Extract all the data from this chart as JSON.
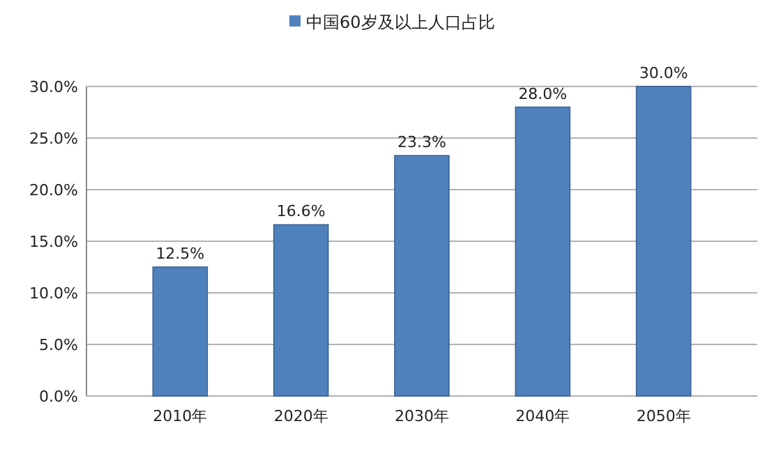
{
  "chart_data": {
    "type": "bar",
    "categories": [
      "2010年",
      "2020年",
      "2030年",
      "2040年",
      "2050年"
    ],
    "series": [
      {
        "name": "中国60岁及以上人口占比",
        "color": "#4f81bd",
        "values": [
          12.5,
          16.6,
          23.3,
          28.0,
          30.0
        ],
        "value_labels": [
          "12.5%",
          "16.6%",
          "23.3%",
          "28.0%",
          "30.0%"
        ]
      }
    ],
    "ylim": [
      0,
      30
    ],
    "yticks": [
      {
        "value": 0,
        "label": "0.0%"
      },
      {
        "value": 5,
        "label": "5.0%"
      },
      {
        "value": 10,
        "label": "10.0%"
      },
      {
        "value": 15,
        "label": "15.0%"
      },
      {
        "value": 20,
        "label": "20.0%"
      },
      {
        "value": 25,
        "label": "25.0%"
      },
      {
        "value": 30,
        "label": "30.0%"
      }
    ],
    "grid": true,
    "legend": "top"
  }
}
